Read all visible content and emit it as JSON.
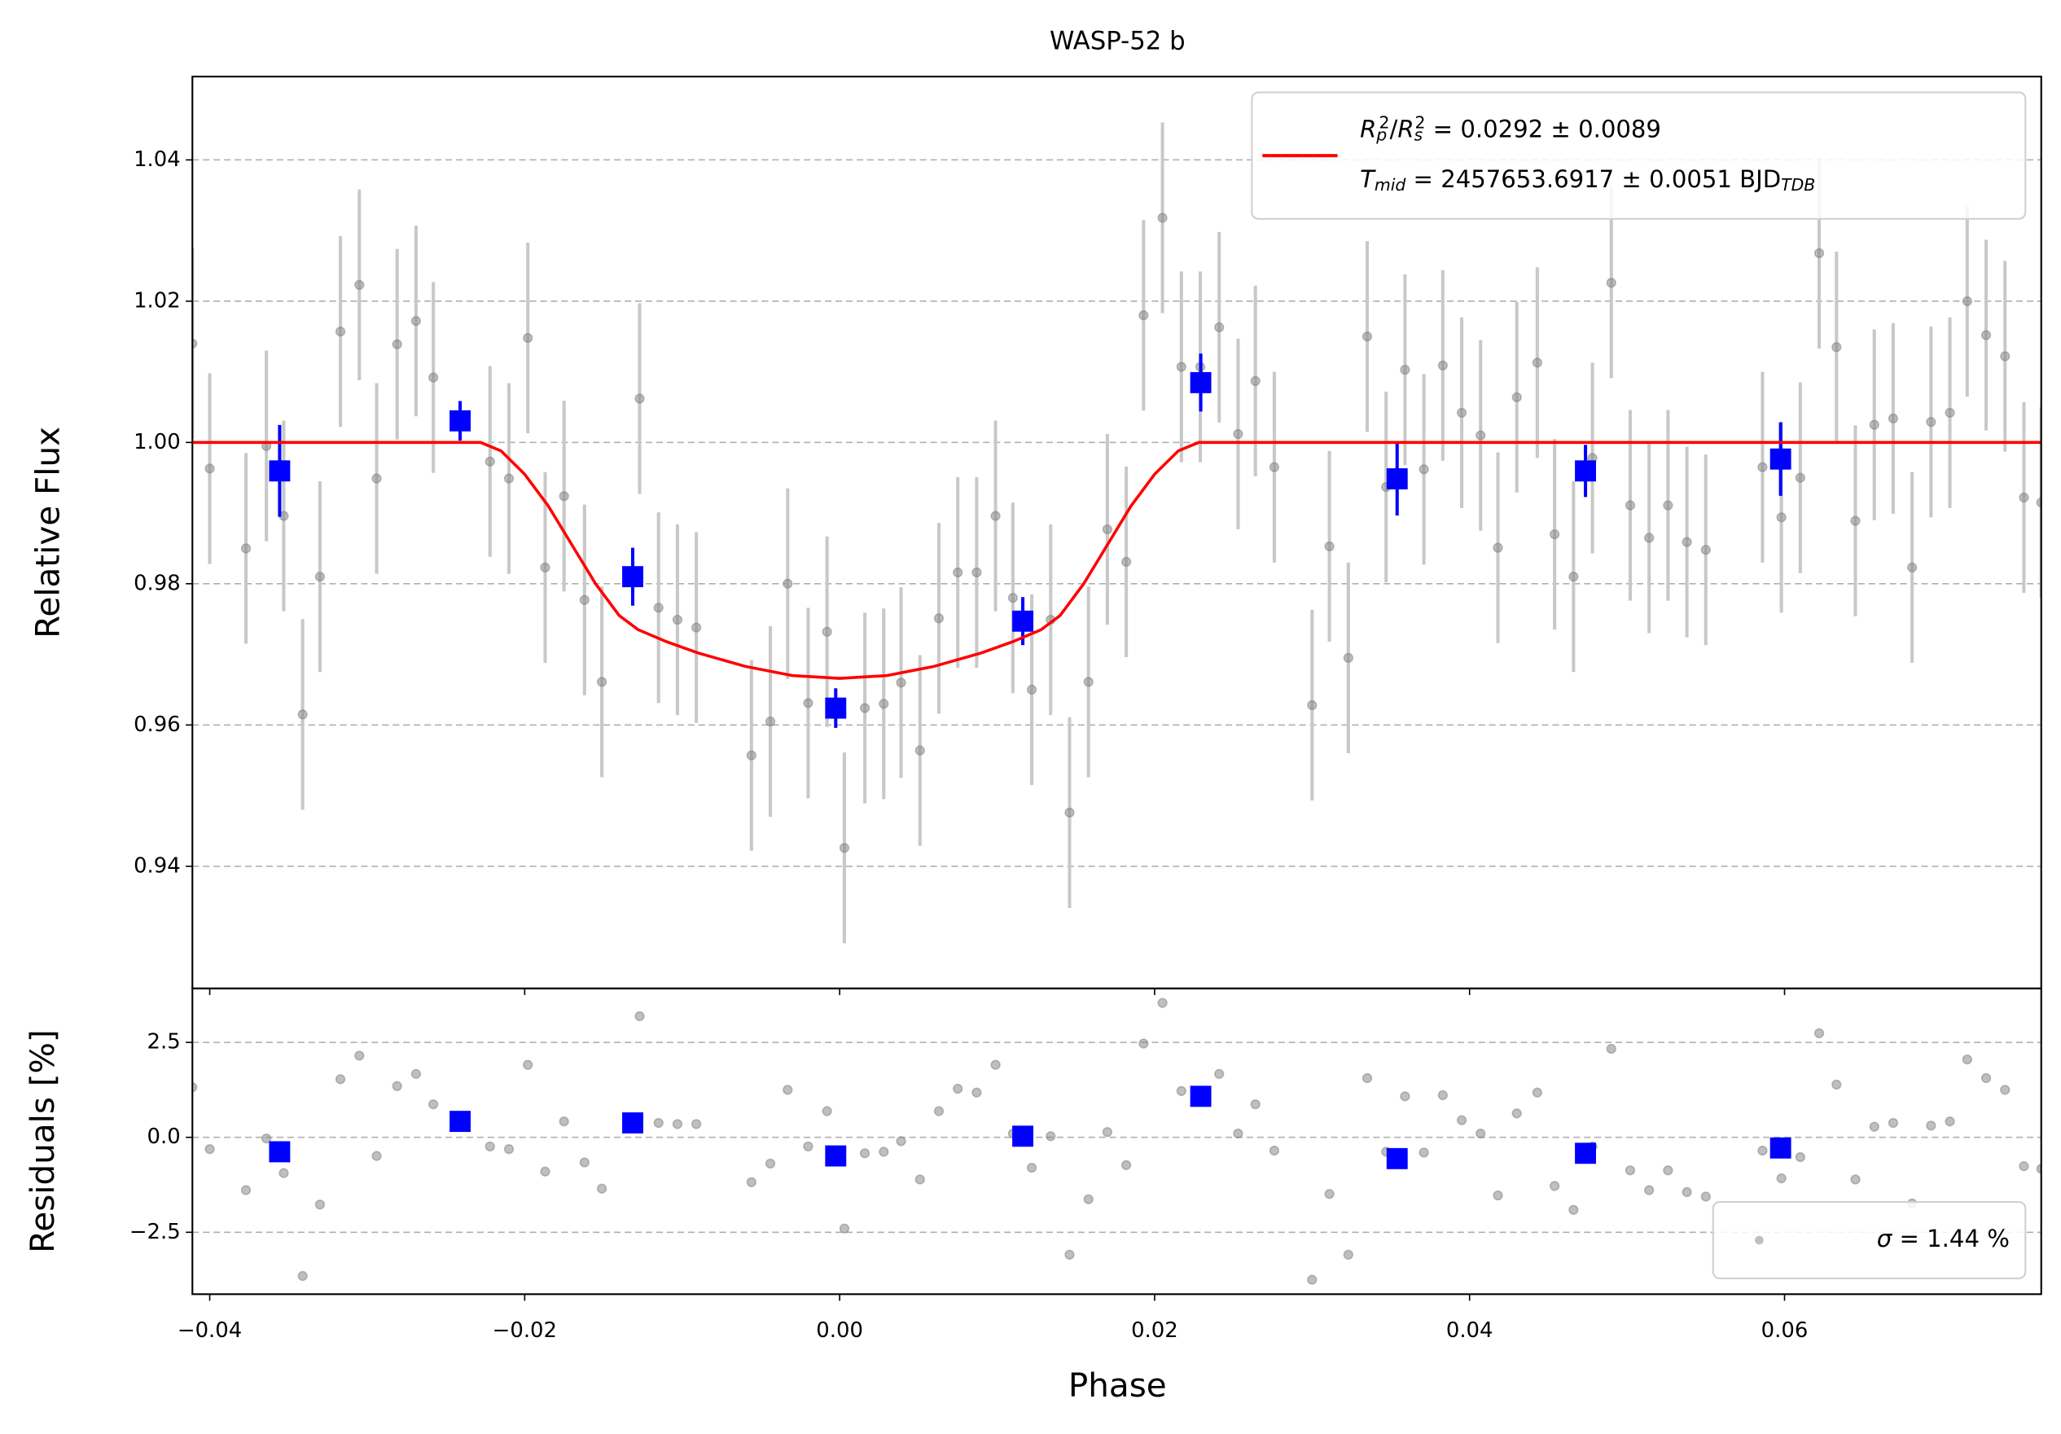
{
  "chart_data": [
    {
      "type": "scatter",
      "title": "WASP-52 b",
      "ylabel": "Relative Flux",
      "xlim": [
        -0.0411,
        0.0763
      ],
      "ylim": [
        0.9227,
        1.0518
      ],
      "xticks": [
        {
          "value": -0.04,
          "label": "−0.04"
        },
        {
          "value": -0.02,
          "label": "−0.02"
        },
        {
          "value": 0,
          "label": "0.00"
        },
        0.02,
        0.04,
        0.06
      ],
      "yticks": [
        0.94,
        0.96,
        0.98,
        {
          "value": 1.0,
          "label": "1.00"
        },
        1.02,
        1.04
      ],
      "grid": true,
      "legend_position": "upper right",
      "series": [
        {
          "marker": "circle",
          "color": "#808080",
          "error_color": "#c8c8c8",
          "error": 0.0135,
          "x": [
            -0.0411,
            -0.04,
            -0.0377,
            -0.0364,
            -0.0353,
            -0.0341,
            -0.033,
            -0.0317,
            -0.0305,
            -0.0294,
            -0.0281,
            -0.0269,
            -0.0258,
            -0.0222,
            -0.021,
            -0.0198,
            -0.0187,
            -0.0175,
            -0.0162,
            -0.0151,
            -0.0127,
            -0.0115,
            -0.0103,
            -0.0091,
            -0.0056,
            -0.0044,
            -0.0033,
            -0.002,
            -0.0008,
            0.0003,
            0.0016,
            0.0028,
            0.0039,
            0.0051,
            0.0063,
            0.0075,
            0.0087,
            0.0099,
            0.011,
            0.0122,
            0.0134,
            0.0146,
            0.0158,
            0.017,
            0.0182,
            0.0193,
            0.0205,
            0.0217,
            0.0229,
            0.0241,
            0.0253,
            0.0264,
            0.0276,
            0.03,
            0.0311,
            0.0323,
            0.0335,
            0.0347,
            0.0359,
            0.0371,
            0.0383,
            0.0395,
            0.0407,
            0.0418,
            0.043,
            0.0443,
            0.0454,
            0.0466,
            0.0478,
            0.049,
            0.0502,
            0.0514,
            0.0526,
            0.0538,
            0.055,
            0.0586,
            0.0598,
            0.061,
            0.0622,
            0.0633,
            0.0645,
            0.0657,
            0.0669,
            0.0681,
            0.0693,
            0.0705,
            0.0716,
            0.0728,
            0.074,
            0.0752,
            0.0763
          ],
          "values": [
            1.014,
            0.9963,
            0.985,
            0.9995,
            0.9896,
            0.9615,
            0.981,
            1.0157,
            1.0223,
            0.9949,
            1.0139,
            1.0172,
            1.0092,
            0.9973,
            0.9949,
            1.0148,
            0.9823,
            0.9924,
            0.9777,
            0.9661,
            1.0062,
            0.9766,
            0.9749,
            0.9738,
            0.9557,
            0.9605,
            0.98,
            0.9631,
            0.9732,
            0.9426,
            0.9624,
            0.963,
            0.966,
            0.9564,
            0.9751,
            0.9816,
            0.9816,
            0.9896,
            0.978,
            0.965,
            0.9749,
            0.9476,
            0.9661,
            0.9877,
            0.9831,
            1.018,
            1.0318,
            1.0107,
            1.0107,
            1.0163,
            1.0012,
            1.0087,
            0.9965,
            0.9628,
            0.9853,
            0.9695,
            1.015,
            0.9937,
            1.0103,
            0.9962,
            1.0109,
            1.0042,
            1.001,
            0.9851,
            1.0064,
            1.0113,
            0.987,
            0.981,
            0.9978,
            1.0226,
            0.9911,
            0.9865,
            0.9911,
            0.9859,
            0.9848,
            0.9965,
            0.9894,
            0.995,
            1.0268,
            1.0135,
            0.9889,
            1.0025,
            1.0034,
            0.9823,
            1.0029,
            1.0042,
            1.02,
            1.0152,
            1.0122,
            0.9922,
            0.9915
          ]
        },
        {
          "marker": "square",
          "color": "#0000ff",
          "x": [
            -0.03556,
            -0.0241,
            -0.01314,
            -0.00025,
            0.01163,
            0.02293,
            0.0354,
            0.04736,
            0.05975
          ],
          "values": [
            0.99597,
            1.00306,
            0.981,
            0.96239,
            0.9747,
            1.00847,
            0.99485,
            0.99597,
            0.99765
          ],
          "errors": [
            0.0065,
            0.0028,
            0.0041,
            0.0028,
            0.0034,
            0.0041,
            0.0052,
            0.0037,
            0.0052
          ]
        },
        {
          "marker": "line",
          "color": "#ff0000",
          "legend": [
            [
              {
                "text": "R",
                "style": "italic"
              },
              {
                "text": "p",
                "style": "sub"
              },
              {
                "text": "2",
                "style": "sup"
              },
              {
                "text": "/",
                "style": "normal"
              },
              {
                "text": "R",
                "style": "italic"
              },
              {
                "text": "s",
                "style": "sub"
              },
              {
                "text": "2",
                "style": "sup"
              },
              {
                "text": " = 0.0292 ± 0.0089",
                "style": "normal"
              }
            ],
            [
              {
                "text": "T",
                "style": "italic"
              },
              {
                "text": "mid",
                "style": "sub"
              },
              {
                "text": " = 2457653.6917 ± 0.0051 BJD",
                "style": "normal"
              },
              {
                "text": "TDB",
                "style": "sub"
              }
            ]
          ],
          "x": [
            -0.0411,
            -0.0228,
            -0.0215,
            -0.02,
            -0.0185,
            -0.017,
            -0.0155,
            -0.014,
            -0.0128,
            -0.011,
            -0.009,
            -0.006,
            -0.003,
            0,
            0.003,
            0.006,
            0.009,
            0.011,
            0.0128,
            0.014,
            0.0155,
            0.017,
            0.0185,
            0.02,
            0.0215,
            0.0228,
            0.0763
          ],
          "values": [
            1,
            1,
            0.9988,
            0.9955,
            0.991,
            0.9855,
            0.98,
            0.9755,
            0.9735,
            0.9718,
            0.9702,
            0.9683,
            0.967,
            0.9666,
            0.967,
            0.9683,
            0.9702,
            0.9718,
            0.9735,
            0.9755,
            0.98,
            0.9855,
            0.991,
            0.9955,
            0.9988,
            1,
            1
          ]
        }
      ]
    },
    {
      "type": "scatter",
      "xlabel": "Phase",
      "ylabel": "Residuals [%]",
      "xlim": [
        -0.0411,
        0.0763
      ],
      "ylim": [
        -4.13,
        3.92
      ],
      "xticks": [
        {
          "value": -0.04,
          "label": "−0.04"
        },
        {
          "value": -0.02,
          "label": "−0.02"
        },
        {
          "value": 0,
          "label": "0.00"
        },
        0.02,
        0.04,
        0.06
      ],
      "yticks": [
        {
          "value": -2.5,
          "label": "−2.5"
        },
        {
          "value": 0,
          "label": "0.0"
        },
        2.5
      ],
      "grid": true,
      "legend_position": "lower right",
      "series": [
        {
          "marker": "circle",
          "color": "#808080",
          "legend": [
            [
              {
                "text": "σ",
                "style": "italic"
              },
              {
                "text": " = 1.44 %",
                "style": "normal"
              }
            ]
          ],
          "x": [
            -0.0411,
            -0.04,
            -0.0377,
            -0.0364,
            -0.0353,
            -0.0341,
            -0.033,
            -0.0317,
            -0.0305,
            -0.0294,
            -0.0281,
            -0.0269,
            -0.0258,
            -0.0222,
            -0.021,
            -0.0198,
            -0.0187,
            -0.0175,
            -0.0162,
            -0.0151,
            -0.0127,
            -0.0115,
            -0.0103,
            -0.0091,
            -0.0056,
            -0.0044,
            -0.0033,
            -0.002,
            -0.0008,
            0.0003,
            0.0016,
            0.0028,
            0.0039,
            0.0051,
            0.0063,
            0.0075,
            0.0087,
            0.0099,
            0.011,
            0.0122,
            0.0134,
            0.0146,
            0.0158,
            0.017,
            0.0182,
            0.0193,
            0.0205,
            0.0217,
            0.0229,
            0.0241,
            0.0253,
            0.0264,
            0.0276,
            0.03,
            0.0311,
            0.0323,
            0.0335,
            0.0347,
            0.0359,
            0.0371,
            0.0383,
            0.0395,
            0.0407,
            0.0418,
            0.043,
            0.0443,
            0.0454,
            0.0466,
            0.0478,
            0.049,
            0.0502,
            0.0514,
            0.0526,
            0.0538,
            0.055,
            0.0586,
            0.0598,
            0.061,
            0.0622,
            0.0633,
            0.0645,
            0.0657,
            0.0669,
            0.0681,
            0.0693,
            0.0705,
            0.0716,
            0.0728,
            0.074,
            0.0752,
            0.0763
          ],
          "values": [
            1.32,
            -0.31,
            -1.39,
            -0.03,
            -0.94,
            -3.65,
            -1.77,
            1.53,
            2.15,
            -0.49,
            1.35,
            1.67,
            0.87,
            -0.24,
            -0.31,
            1.91,
            -0.9,
            0.42,
            -0.66,
            -1.35,
            3.19,
            0.38,
            0.35,
            0.35,
            -1.18,
            -0.69,
            1.25,
            -0.24,
            0.69,
            -2.4,
            -0.42,
            -0.38,
            -0.1,
            -1.11,
            0.69,
            1.28,
            1.18,
            1.91,
            0.1,
            -0.8,
            0.03,
            -3.09,
            -1.63,
            0.14,
            -0.73,
            2.47,
            3.54,
            1.22,
            1.15,
            1.67,
            0.1,
            0.87,
            -0.35,
            -3.75,
            -1.49,
            -3.09,
            1.56,
            -0.38,
            1.08,
            -0.4,
            1.11,
            0.45,
            0.1,
            -1.53,
            0.63,
            1.18,
            -1.28,
            -1.91,
            -0.24,
            2.33,
            -0.87,
            -1.39,
            -0.87,
            -1.44,
            -1.56,
            -0.35,
            -1.08,
            -0.52,
            2.74,
            1.39,
            -1.11,
            0.28,
            0.38,
            -1.74,
            0.31,
            0.42,
            2.05,
            1.56,
            1.25,
            -0.76,
            -0.83
          ]
        },
        {
          "marker": "square",
          "color": "#0000ff",
          "x": [
            -0.03556,
            -0.0241,
            -0.01314,
            -0.00025,
            0.01163,
            0.02293,
            0.0354,
            0.04736,
            0.05975
          ],
          "values": [
            -0.38,
            0.42,
            0.38,
            -0.49,
            0.03,
            1.08,
            -0.56,
            -0.42,
            -0.28
          ]
        }
      ]
    }
  ]
}
